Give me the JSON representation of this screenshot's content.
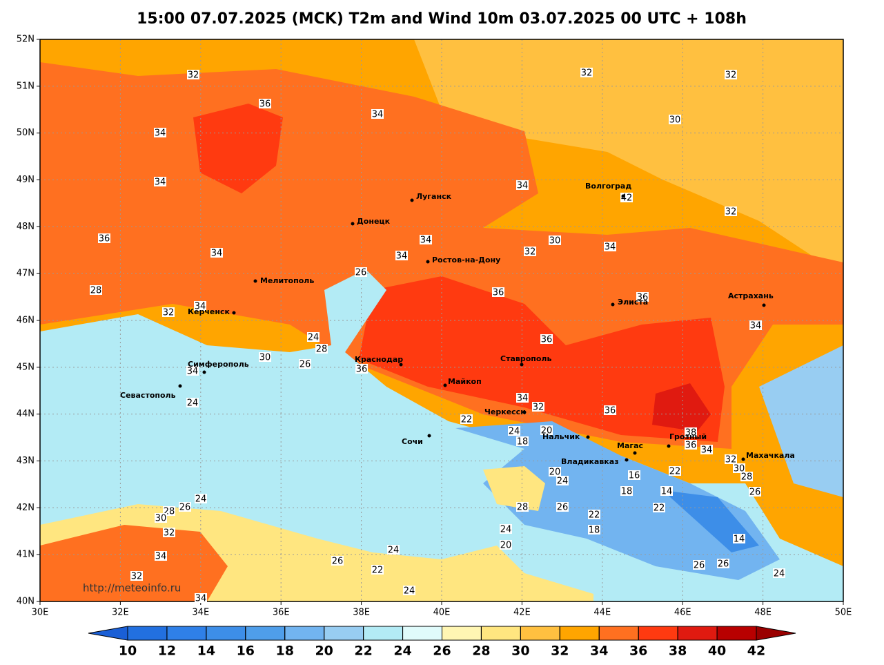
{
  "title": "15:00 07.07.2025 (MCK) T2m and Wind 10m 03.07.2025 00 UTC + 108h",
  "lon_ticks": [
    {
      "value": 30,
      "label": "30E"
    },
    {
      "value": 32,
      "label": "32E"
    },
    {
      "value": 34,
      "label": "34E"
    },
    {
      "value": 36,
      "label": "36E"
    },
    {
      "value": 38,
      "label": "38E"
    },
    {
      "value": 40,
      "label": "40E"
    },
    {
      "value": 42,
      "label": "42E"
    },
    {
      "value": 44,
      "label": "44E"
    },
    {
      "value": 46,
      "label": "46E"
    },
    {
      "value": 48,
      "label": "48E"
    },
    {
      "value": 50,
      "label": "50E"
    }
  ],
  "lat_ticks": [
    {
      "value": 40,
      "label": "40N"
    },
    {
      "value": 41,
      "label": "41N"
    },
    {
      "value": 42,
      "label": "42N"
    },
    {
      "value": 43,
      "label": "43N"
    },
    {
      "value": 44,
      "label": "44N"
    },
    {
      "value": 45,
      "label": "45N"
    },
    {
      "value": 46,
      "label": "46N"
    },
    {
      "value": 47,
      "label": "47N"
    },
    {
      "value": 48,
      "label": "48N"
    },
    {
      "value": 49,
      "label": "49N"
    },
    {
      "value": 50,
      "label": "50N"
    },
    {
      "value": 51,
      "label": "51N"
    },
    {
      "value": 52,
      "label": "52N"
    }
  ],
  "cities": [
    "Луганск",
    "Донецк",
    "Волгоград",
    "Ростов-на-Дону",
    "Мелитополь",
    "Керченск",
    "Элиста",
    "Астрахань",
    "Краснодар",
    "Майкоп",
    "Ставрополь",
    "Симферополь",
    "Севастополь",
    "Черкесск",
    "Сочи",
    "Нальчик",
    "Магас",
    "Владикавказ",
    "Грозный",
    "Махачкала"
  ],
  "contour_labels": [
    32,
    36,
    34,
    34,
    34,
    32,
    32,
    30,
    34,
    32,
    36,
    34,
    34,
    34,
    32,
    30,
    34,
    26,
    28,
    36,
    36,
    34,
    32,
    34,
    36,
    24,
    28,
    30,
    26,
    36,
    34,
    24,
    34,
    32,
    36,
    22,
    20,
    24,
    18,
    38,
    36,
    34,
    32,
    30,
    22,
    16,
    28,
    20,
    24,
    18,
    14,
    26,
    24,
    28,
    26,
    30,
    32,
    28,
    26,
    22,
    22,
    18,
    24,
    14,
    20,
    24,
    34,
    26,
    22,
    26,
    26,
    24,
    32,
    24,
    34,
    42
  ],
  "url": "http://meteoinfo.ru",
  "colorbar": {
    "ticks": [
      10,
      12,
      14,
      16,
      18,
      20,
      22,
      24,
      26,
      28,
      30,
      32,
      34,
      36,
      38,
      40,
      42
    ],
    "colors": [
      "#1a5fd6",
      "#2270e0",
      "#2f80e8",
      "#3d8ee8",
      "#4f9eea",
      "#72b4f0",
      "#98cdf2",
      "#b3ebf5",
      "#e0fbfb",
      "#fff6b3",
      "#ffe680",
      "#ffc040",
      "#ffa500",
      "#ff7020",
      "#ff3a10",
      "#e01a10",
      "#b80000",
      "#9a0000"
    ]
  }
}
